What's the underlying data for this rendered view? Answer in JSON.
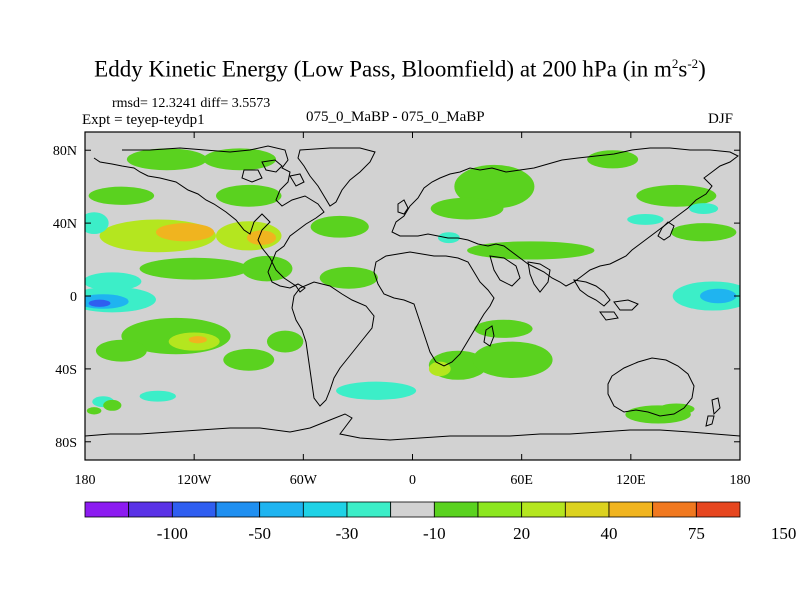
{
  "title": {
    "main": "Eddy Kinetic Energy (Low Pass, Bloomfield) at 200 hPa (in m",
    "sup1": "2",
    "mid": "s",
    "sup2": "-2",
    "end": ")"
  },
  "stats_line": "rmsd= 12.3241 diff= 3.5573",
  "expt_line": "Expt = teyep-teydp1",
  "comparison_line": "075_0_MaBP - 075_0_MaBP",
  "season": "DJF",
  "chart_data": {
    "type": "heatmap",
    "projection": "cylindrical-equidistant",
    "xlim": [
      -180,
      180
    ],
    "ylim": [
      -90,
      90
    ],
    "x_ticks": [
      {
        "value": -180,
        "label": "180"
      },
      {
        "value": -120,
        "label": "120W"
      },
      {
        "value": -60,
        "label": "60W"
      },
      {
        "value": 0,
        "label": "0"
      },
      {
        "value": 60,
        "label": "60E"
      },
      {
        "value": 120,
        "label": "120E"
      },
      {
        "value": 180,
        "label": "180"
      }
    ],
    "y_ticks": [
      {
        "value": 80,
        "label": "80N"
      },
      {
        "value": 40,
        "label": "40N"
      },
      {
        "value": 0,
        "label": "0"
      },
      {
        "value": -40,
        "label": "40S"
      },
      {
        "value": -80,
        "label": "80S"
      }
    ],
    "colorbar": {
      "colors": [
        "#8c1bf0",
        "#5a32e6",
        "#2f5ef0",
        "#1f8ff0",
        "#1fb4f0",
        "#1fd2e6",
        "#3ceec8",
        "#d2d2d2",
        "#5ad21f",
        "#8ce61f",
        "#b4e61f",
        "#dcd21f",
        "#f0b41f",
        "#f0781f",
        "#e6461f"
      ],
      "labels": [
        "-100",
        "-50",
        "-30",
        "-10",
        "20",
        "40",
        "75",
        "150"
      ]
    },
    "regions": [
      {
        "name": "north-pacific-storm-track",
        "lon": -140,
        "lat": 33,
        "rx": 32,
        "ry": 9,
        "value": 40
      },
      {
        "name": "north-pacific-core",
        "lon": -125,
        "lat": 35,
        "rx": 16,
        "ry": 5,
        "value": 55
      },
      {
        "name": "north-america-jet",
        "lon": -90,
        "lat": 33,
        "rx": 18,
        "ry": 8,
        "value": 40
      },
      {
        "name": "north-america-core",
        "lon": -83,
        "lat": 32,
        "rx": 8,
        "ry": 4,
        "value": 55
      },
      {
        "name": "arctic-west",
        "lon": -135,
        "lat": 75,
        "rx": 22,
        "ry": 6,
        "value": 20
      },
      {
        "name": "arctic-mid",
        "lon": -95,
        "lat": 75,
        "rx": 20,
        "ry": 6,
        "value": 20
      },
      {
        "name": "alaska-band",
        "lon": -160,
        "lat": 55,
        "rx": 18,
        "ry": 5,
        "value": 20
      },
      {
        "name": "canada-band",
        "lon": -90,
        "lat": 55,
        "rx": 18,
        "ry": 6,
        "value": 20
      },
      {
        "name": "north-atlantic",
        "lon": -40,
        "lat": 38,
        "rx": 16,
        "ry": 6,
        "value": 20
      },
      {
        "name": "central-pacific-lobe",
        "lon": -120,
        "lat": 15,
        "rx": 30,
        "ry": 6,
        "value": 20
      },
      {
        "name": "mexico-lobe",
        "lon": -80,
        "lat": 15,
        "rx": 14,
        "ry": 7,
        "value": 20
      },
      {
        "name": "tropical-atlantic",
        "lon": -35,
        "lat": 10,
        "rx": 16,
        "ry": 6,
        "value": 20
      },
      {
        "name": "north-pacific-south-flank",
        "lon": -175,
        "lat": 40,
        "rx": 8,
        "ry": 6,
        "value": -10
      },
      {
        "name": "tropical-east-pacific-south",
        "lon": -165,
        "lat": -2,
        "rx": 24,
        "ry": 7,
        "value": -10
      },
      {
        "name": "tropical-east-pacific-north",
        "lon": -165,
        "lat": 8,
        "rx": 16,
        "ry": 5,
        "value": -10
      },
      {
        "name": "tropical-east-pacific-core",
        "lon": -170,
        "lat": -3,
        "rx": 14,
        "ry": 4,
        "value": -30
      },
      {
        "name": "tropical-east-pacific-min",
        "lon": -172,
        "lat": -4,
        "rx": 6,
        "ry": 2,
        "value": -50
      },
      {
        "name": "south-pacific-band",
        "lon": -130,
        "lat": -22,
        "rx": 30,
        "ry": 10,
        "value": 20
      },
      {
        "name": "south-pacific-core",
        "lon": -120,
        "lat": -25,
        "rx": 14,
        "ry": 5,
        "value": 40
      },
      {
        "name": "south-pacific-max",
        "lon": -118,
        "lat": -24,
        "rx": 5,
        "ry": 2,
        "value": 55
      },
      {
        "name": "south-america-west",
        "lon": -90,
        "lat": -35,
        "rx": 14,
        "ry": 6,
        "value": 20
      },
      {
        "name": "south-america-east",
        "lon": -70,
        "lat": -25,
        "rx": 10,
        "ry": 6,
        "value": 20
      },
      {
        "name": "south-pacific-tail",
        "lon": -160,
        "lat": -30,
        "rx": 14,
        "ry": 6,
        "value": 20
      },
      {
        "name": "south-atlantic-teal",
        "lon": -20,
        "lat": -52,
        "rx": 22,
        "ry": 5,
        "value": -10
      },
      {
        "name": "southern-ocean-west",
        "lon": -170,
        "lat": -58,
        "rx": 6,
        "ry": 3,
        "value": -10
      },
      {
        "name": "southern-ocean-green",
        "lon": -165,
        "lat": -60,
        "rx": 5,
        "ry": 3,
        "value": 20
      },
      {
        "name": "southern-ocean-dot",
        "lon": -175,
        "lat": -63,
        "rx": 4,
        "ry": 2,
        "value": 20
      },
      {
        "name": "south-pacific-teal",
        "lon": -140,
        "lat": -55,
        "rx": 10,
        "ry": 3,
        "value": -10
      },
      {
        "name": "eurasia-north",
        "lon": 45,
        "lat": 60,
        "rx": 22,
        "ry": 12,
        "value": 20
      },
      {
        "name": "europe-band",
        "lon": 30,
        "lat": 48,
        "rx": 20,
        "ry": 6,
        "value": 20
      },
      {
        "name": "middle-east-band",
        "lon": 65,
        "lat": 25,
        "rx": 35,
        "ry": 5,
        "value": 20
      },
      {
        "name": "north-pacific-east",
        "lon": 145,
        "lat": 55,
        "rx": 22,
        "ry": 6,
        "value": 20
      },
      {
        "name": "west-pacific-band",
        "lon": 160,
        "lat": 35,
        "rx": 18,
        "ry": 5,
        "value": 20
      },
      {
        "name": "east-asia",
        "lon": 110,
        "lat": 75,
        "rx": 14,
        "ry": 5,
        "value": 20
      },
      {
        "name": "east-asia-teal",
        "lon": 128,
        "lat": 42,
        "rx": 10,
        "ry": 3,
        "value": -10
      },
      {
        "name": "west-pacific-tropics",
        "lon": 165,
        "lat": 0,
        "rx": 22,
        "ry": 8,
        "value": -10
      },
      {
        "name": "west-pacific-tropics-core",
        "lon": 168,
        "lat": 0,
        "rx": 10,
        "ry": 4,
        "value": -30
      },
      {
        "name": "siberia-teal",
        "lon": 160,
        "lat": 48,
        "rx": 8,
        "ry": 3,
        "value": -10
      },
      {
        "name": "mideast-teal",
        "lon": 20,
        "lat": 32,
        "rx": 6,
        "ry": 3,
        "value": -10
      },
      {
        "name": "south-africa-storm",
        "lon": 25,
        "lat": -38,
        "rx": 16,
        "ry": 8,
        "value": 20
      },
      {
        "name": "south-africa-core",
        "lon": 15,
        "lat": -40,
        "rx": 6,
        "ry": 4,
        "value": 40
      },
      {
        "name": "indian-ocean-south",
        "lon": 55,
        "lat": -35,
        "rx": 22,
        "ry": 10,
        "value": 20
      },
      {
        "name": "indian-ocean-band",
        "lon": 50,
        "lat": -18,
        "rx": 16,
        "ry": 5,
        "value": 20
      },
      {
        "name": "southern-ocean-east",
        "lon": 135,
        "lat": -65,
        "rx": 18,
        "ry": 5,
        "value": 20
      },
      {
        "name": "australia-south",
        "lon": 145,
        "lat": -62,
        "rx": 10,
        "ry": 3,
        "value": 20
      }
    ]
  }
}
